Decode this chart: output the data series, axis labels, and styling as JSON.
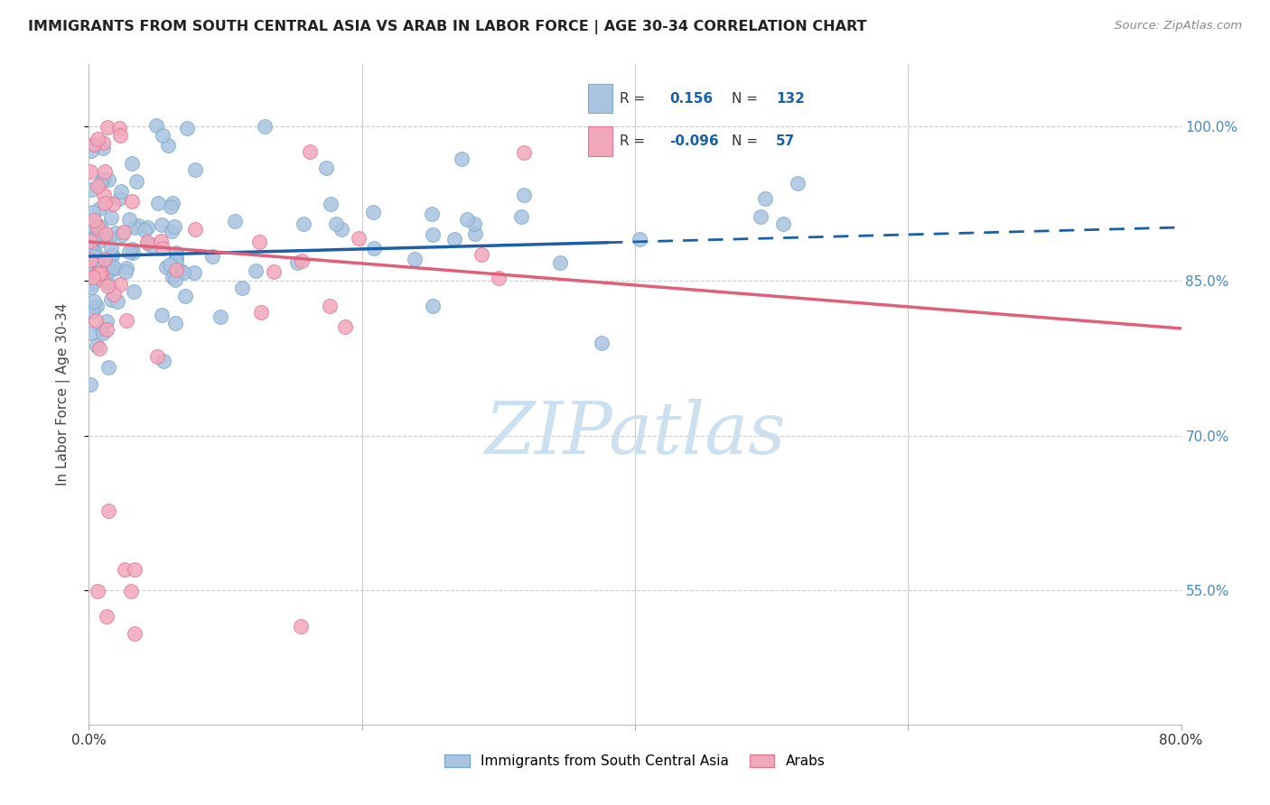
{
  "title": "IMMIGRANTS FROM SOUTH CENTRAL ASIA VS ARAB IN LABOR FORCE | AGE 30-34 CORRELATION CHART",
  "source": "Source: ZipAtlas.com",
  "ylabel": "In Labor Force | Age 30-34",
  "xlim": [
    0.0,
    0.8
  ],
  "ylim": [
    0.42,
    1.06
  ],
  "y_ticks": [
    0.55,
    0.7,
    0.85,
    1.0
  ],
  "y_tick_labels": [
    "55.0%",
    "70.0%",
    "85.0%",
    "100.0%"
  ],
  "x_ticks": [
    0.0,
    0.2,
    0.4,
    0.6,
    0.8
  ],
  "x_tick_labels": [
    "0.0%",
    "",
    "",
    "",
    "80.0%"
  ],
  "legend_blue_label": "Immigrants from South Central Asia",
  "legend_pink_label": "Arabs",
  "r_blue": 0.156,
  "n_blue": 132,
  "r_pink": -0.096,
  "n_pink": 57,
  "blue_color": "#aac4e0",
  "pink_color": "#f2a8bb",
  "blue_edge": "#7aaace",
  "pink_edge": "#e07898",
  "blue_line_color": "#1a5fa8",
  "pink_line_color": "#e0607a",
  "watermark_color": "#cce0f0",
  "background_color": "#ffffff",
  "grid_color": "#cccccc",
  "right_tick_color": "#4488cc",
  "title_color": "#222222",
  "source_color": "#888888"
}
